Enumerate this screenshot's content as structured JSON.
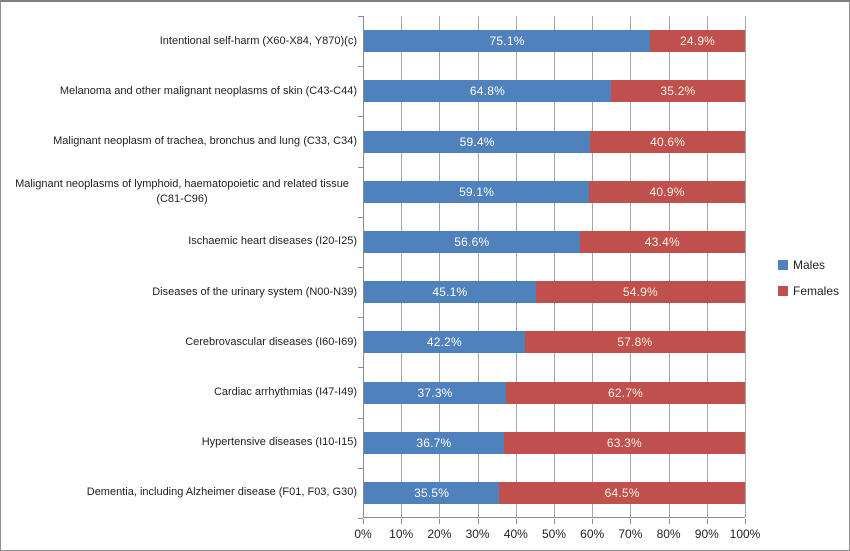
{
  "chart_data": {
    "type": "bar",
    "orientation": "horizontal",
    "stacked": true,
    "title": "",
    "xlabel": "",
    "ylabel": "",
    "xlim": [
      0,
      100
    ],
    "grid": true,
    "legend_position": "right",
    "value_suffix": "%",
    "x_ticks": [
      "0%",
      "10%",
      "20%",
      "30%",
      "40%",
      "50%",
      "60%",
      "70%",
      "80%",
      "90%",
      "100%"
    ],
    "categories": [
      "Intentional self-harm (X60-X84, Y870)(c)",
      "Melanoma and other malignant neoplasms of skin  (C43-C44)",
      "Malignant neoplasm of trachea, bronchus and lung (C33, C34)",
      "Malignant neoplasms of lymphoid, haematopoietic and related tissue (C81-C96)",
      "Ischaemic heart diseases (I20-I25)",
      "Diseases of the urinary system (N00-N39)",
      "Cerebrovascular diseases (I60-I69)",
      "Cardiac arrhythmias (I47-I49)",
      "Hypertensive diseases (I10-I15)",
      "Dementia, including Alzheimer disease (F01, F03, G30)"
    ],
    "series": [
      {
        "name": "Males",
        "color": "#4F81BD",
        "label_color": "#FFFFFF",
        "values": [
          75.1,
          64.8,
          59.4,
          59.1,
          56.6,
          45.1,
          42.2,
          37.3,
          36.7,
          35.5
        ]
      },
      {
        "name": "Females",
        "color": "#C0504D",
        "label_color": "#F4F0E3",
        "values": [
          24.9,
          35.2,
          40.6,
          40.9,
          43.4,
          54.9,
          57.8,
          62.7,
          63.3,
          64.5
        ]
      }
    ],
    "colors": {
      "gridline": "#A6A6A6",
      "axis_line": "#8C8C8C",
      "tick_text": "#1F1F1F",
      "background": "#FFFFFF",
      "border": "#8F8F8F"
    }
  }
}
